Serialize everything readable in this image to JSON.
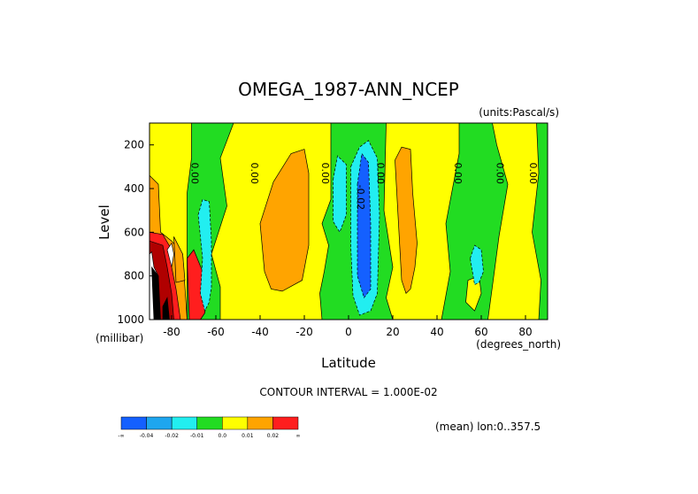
{
  "chart_data": {
    "type": "heatmap",
    "title": "OMEGA_1987-ANN_NCEP",
    "units_label": "(units:Pascal/s)",
    "xlabel": "Latitude",
    "ylabel": "Level",
    "x_unit_label": "(degrees_north)",
    "y_unit_label": "(millibar)",
    "xlim": [
      -90,
      90
    ],
    "ylim": [
      1000,
      100
    ],
    "y_reversed": true,
    "x_ticks": [
      "-80",
      "-60",
      "-40",
      "-20",
      "0",
      "20",
      "40",
      "60",
      "80"
    ],
    "x_tick_values": [
      -80,
      -60,
      -40,
      -20,
      0,
      20,
      40,
      60,
      80
    ],
    "y_ticks": [
      "200",
      "400",
      "600",
      "800",
      "1000"
    ],
    "y_tick_values": [
      200,
      400,
      600,
      800,
      1000
    ],
    "contour_interval": "CONTOUR INTERVAL = 1.000E-02",
    "annotation": "(mean) lon:0..357.5",
    "contour_labels": [
      {
        "text": "0.00",
        "lat": -71,
        "p": 330
      },
      {
        "text": "0.00",
        "lat": -44,
        "p": 330
      },
      {
        "text": "0.00",
        "lat": -12,
        "p": 330
      },
      {
        "text": "0.00",
        "lat": 13,
        "p": 330
      },
      {
        "text": "-0.02",
        "lat": 4,
        "p": 440
      },
      {
        "text": "0.00",
        "lat": 48,
        "p": 330
      },
      {
        "text": "0.00",
        "lat": 67,
        "p": 330
      },
      {
        "text": "0.00",
        "lat": 82,
        "p": 330
      }
    ],
    "colorbar": {
      "colors": [
        "#1460ff",
        "#1ea6ef",
        "#22eef0",
        "#22dc22",
        "#ffff00",
        "#ffa400",
        "#ff1e1e"
      ],
      "labels": [
        "-∞",
        "-0.04",
        "-0.02",
        "-0.01",
        "0.0",
        "0.01",
        "0.02",
        "∞"
      ]
    },
    "regions": [
      {
        "level": "green",
        "poly": [
          [
            -90,
            100
          ],
          [
            -90,
            1000
          ],
          [
            90,
            1000
          ],
          [
            90,
            100
          ]
        ]
      },
      {
        "level": "yellow",
        "poly": [
          [
            -90,
            100
          ],
          [
            -71,
            100
          ],
          [
            -71,
            260
          ],
          [
            -73,
            420
          ],
          [
            -73,
            1000
          ],
          [
            -90,
            1000
          ]
        ]
      },
      {
        "level": "yellow",
        "poly": [
          [
            -52,
            100
          ],
          [
            -8,
            100
          ],
          [
            -8,
            450
          ],
          [
            -12,
            560
          ],
          [
            -9,
            660
          ],
          [
            -11,
            780
          ],
          [
            -13,
            880
          ],
          [
            -12,
            1000
          ],
          [
            -58,
            1000
          ],
          [
            -58,
            850
          ],
          [
            -62,
            700
          ],
          [
            -55,
            480
          ],
          [
            -58,
            260
          ]
        ]
      },
      {
        "level": "yellow",
        "poly": [
          [
            17,
            100
          ],
          [
            50,
            100
          ],
          [
            50,
            240
          ],
          [
            44,
            560
          ],
          [
            46,
            780
          ],
          [
            42,
            1000
          ],
          [
            20,
            1000
          ],
          [
            17,
            900
          ],
          [
            20,
            760
          ],
          [
            16,
            500
          ]
        ]
      },
      {
        "level": "yellow",
        "poly": [
          [
            65,
            100
          ],
          [
            85,
            100
          ],
          [
            86,
            330
          ],
          [
            83,
            600
          ],
          [
            87,
            820
          ],
          [
            86,
            1000
          ],
          [
            63,
            1000
          ],
          [
            65,
            850
          ],
          [
            68,
            620
          ],
          [
            72,
            380
          ],
          [
            67,
            200
          ]
        ]
      },
      {
        "level": "yellow",
        "poly": [
          [
            54,
            820
          ],
          [
            59,
            800
          ],
          [
            60,
            880
          ],
          [
            57,
            960
          ],
          [
            53,
            920
          ]
        ]
      },
      {
        "level": "orange",
        "poly": [
          [
            -90,
            340
          ],
          [
            -86,
            380
          ],
          [
            -85,
            600
          ],
          [
            -80,
            640
          ],
          [
            -75,
            700
          ],
          [
            -73,
            1000
          ],
          [
            -90,
            1000
          ]
        ]
      },
      {
        "level": "orange",
        "poly": [
          [
            -34,
            370
          ],
          [
            -26,
            240
          ],
          [
            -20,
            220
          ],
          [
            -18,
            330
          ],
          [
            -18,
            660
          ],
          [
            -21,
            820
          ],
          [
            -30,
            870
          ],
          [
            -35,
            860
          ],
          [
            -38,
            780
          ],
          [
            -40,
            560
          ]
        ]
      },
      {
        "level": "orange",
        "poly": [
          [
            21,
            270
          ],
          [
            24,
            210
          ],
          [
            28,
            220
          ],
          [
            29,
            420
          ],
          [
            31,
            650
          ],
          [
            30,
            760
          ],
          [
            28,
            860
          ],
          [
            26,
            880
          ],
          [
            24,
            820
          ]
        ]
      },
      {
        "level": "orange",
        "poly": [
          [
            -79,
            620
          ],
          [
            -75,
            700
          ],
          [
            -74,
            820
          ],
          [
            -78,
            830
          ]
        ]
      },
      {
        "level": "red",
        "poly": [
          [
            -90,
            600
          ],
          [
            -84,
            610
          ],
          [
            -80,
            680
          ],
          [
            -80,
            760
          ],
          [
            -78,
            860
          ],
          [
            -76,
            1000
          ],
          [
            -90,
            1000
          ]
        ]
      },
      {
        "level": "red",
        "poly": [
          [
            -73,
            720
          ],
          [
            -70,
            680
          ],
          [
            -66,
            780
          ],
          [
            -64,
            900
          ],
          [
            -65,
            970
          ],
          [
            -67,
            1000
          ],
          [
            -72,
            1000
          ]
        ]
      },
      {
        "level": "darkred",
        "poly": [
          [
            -90,
            640
          ],
          [
            -84,
            660
          ],
          [
            -82,
            760
          ],
          [
            -80,
            880
          ],
          [
            -79,
            1000
          ],
          [
            -90,
            1000
          ]
        ]
      },
      {
        "level": "cyan",
        "poly": [
          [
            -68,
            520
          ],
          [
            -66,
            450
          ],
          [
            -63,
            460
          ],
          [
            -62,
            640
          ],
          [
            -62,
            850
          ],
          [
            -63,
            920
          ],
          [
            -65,
            960
          ],
          [
            -67,
            880
          ],
          [
            -66,
            720
          ]
        ]
      },
      {
        "level": "cyan",
        "poly": [
          [
            -7,
            360
          ],
          [
            -5,
            250
          ],
          [
            -1,
            290
          ],
          [
            -1,
            520
          ],
          [
            -4,
            600
          ],
          [
            -7,
            550
          ]
        ]
      },
      {
        "level": "cyan",
        "poly": [
          [
            1,
            300
          ],
          [
            5,
            210
          ],
          [
            9,
            180
          ],
          [
            13,
            260
          ],
          [
            14,
            520
          ],
          [
            13,
            880
          ],
          [
            10,
            960
          ],
          [
            5,
            980
          ],
          [
            2,
            890
          ],
          [
            1,
            660
          ]
        ]
      },
      {
        "level": "cyan",
        "poly": [
          [
            55,
            720
          ],
          [
            57,
            660
          ],
          [
            60,
            680
          ],
          [
            61,
            780
          ],
          [
            59,
            830
          ],
          [
            57,
            840
          ]
        ]
      },
      {
        "level": "blue",
        "poly": [
          [
            4,
            380
          ],
          [
            6,
            240
          ],
          [
            9,
            280
          ],
          [
            10,
            560
          ],
          [
            10,
            860
          ],
          [
            7,
            900
          ],
          [
            4,
            800
          ],
          [
            4,
            560
          ]
        ]
      },
      {
        "level": "white",
        "poly": [
          [
            -90,
            700
          ],
          [
            -89,
            690
          ],
          [
            -88,
            760
          ],
          [
            -86,
            800
          ],
          [
            -86,
            1000
          ],
          [
            -90,
            1000
          ]
        ]
      },
      {
        "level": "black",
        "poly": [
          [
            -89,
            760
          ],
          [
            -86,
            800
          ],
          [
            -85,
            1000
          ],
          [
            -88,
            1000
          ]
        ]
      },
      {
        "level": "black",
        "poly": [
          [
            -84,
            940
          ],
          [
            -82,
            900
          ],
          [
            -81,
            1000
          ],
          [
            -84,
            1000
          ]
        ]
      },
      {
        "level": "white",
        "poly": [
          [
            -82,
            680
          ],
          [
            -80,
            650
          ],
          [
            -79,
            700
          ],
          [
            -80,
            760
          ]
        ]
      }
    ]
  }
}
